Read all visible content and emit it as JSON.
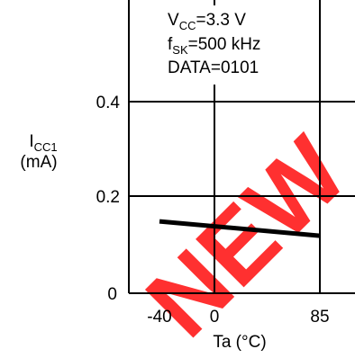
{
  "chart_data": {
    "type": "line",
    "x": [
      -40,
      85
    ],
    "series": [
      {
        "values": [
          0.15,
          0.12
        ],
        "color": "#000000"
      }
    ],
    "xlim": [
      -40,
      85
    ],
    "ylim": [
      0,
      0.4
    ],
    "xticks": [
      "-40",
      "0",
      "85"
    ],
    "xtick_values": [
      -40,
      0,
      85
    ],
    "yticks": [
      "0",
      "0.2",
      "0.4"
    ],
    "ytick_values": [
      0,
      0.2,
      0.4
    ],
    "xlabel": "Ta (°C)",
    "ylabel": {
      "symbol": "I",
      "sub": "CC1",
      "unit": "(mA)"
    },
    "grid": true,
    "annotation": {
      "vcc": {
        "symbol": "V",
        "sub": "CC",
        "value": "=3.3 V"
      },
      "fsk": {
        "symbol": "f",
        "sub": "SK",
        "value": "=500 kHz"
      },
      "data": "DATA=0101"
    },
    "watermark": "NEW",
    "watermark_color": "#ff0000"
  }
}
